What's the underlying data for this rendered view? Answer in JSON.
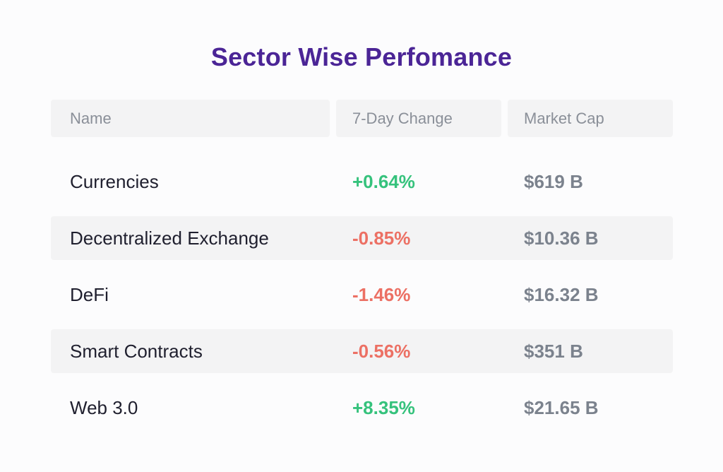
{
  "title": "Sector Wise Perfomance",
  "colors": {
    "title": "#4b2596",
    "positive": "#35c27c",
    "negative": "#ec7064",
    "market_cap": "#7b828d"
  },
  "chart_data": {
    "type": "table",
    "title": "Sector Wise Perfomance",
    "columns": [
      "Name",
      "7-Day Change",
      "Market Cap"
    ],
    "rows": [
      {
        "name": "Currencies",
        "change": "+0.64%",
        "change_value": 0.64,
        "market_cap": "$619 B"
      },
      {
        "name": "Decentralized Exchange",
        "change": "-0.85%",
        "change_value": -0.85,
        "market_cap": "$10.36 B"
      },
      {
        "name": "DeFi",
        "change": "-1.46%",
        "change_value": -1.46,
        "market_cap": "$16.32 B"
      },
      {
        "name": "Smart Contracts",
        "change": "-0.56%",
        "change_value": -0.56,
        "market_cap": "$351 B"
      },
      {
        "name": "Web 3.0",
        "change": "+8.35%",
        "change_value": 8.35,
        "market_cap": "$21.65 B"
      }
    ]
  }
}
